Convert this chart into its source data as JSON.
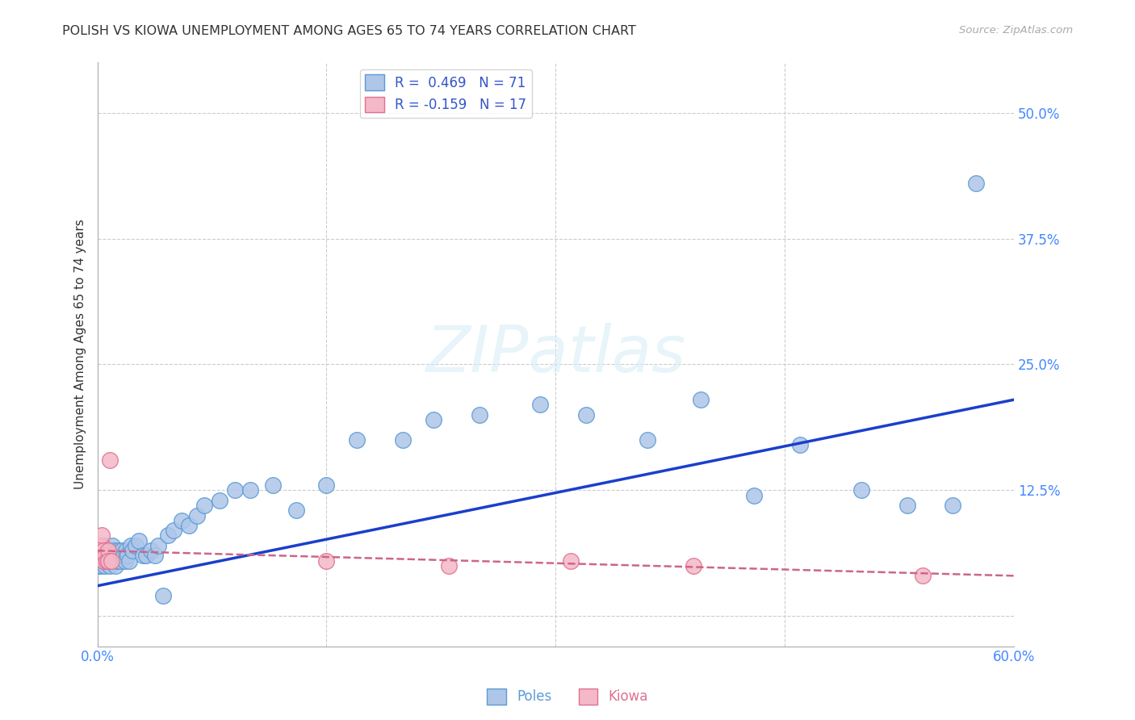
{
  "title": "POLISH VS KIOWA UNEMPLOYMENT AMONG AGES 65 TO 74 YEARS CORRELATION CHART",
  "source": "Source: ZipAtlas.com",
  "ylabel": "Unemployment Among Ages 65 to 74 years",
  "xlim": [
    0.0,
    0.6
  ],
  "ylim": [
    -0.03,
    0.55
  ],
  "xticks": [
    0.0,
    0.15,
    0.3,
    0.45,
    0.6
  ],
  "xticklabels": [
    "0.0%",
    "",
    "",
    "",
    "60.0%"
  ],
  "ytick_positions": [
    0.0,
    0.125,
    0.25,
    0.375,
    0.5
  ],
  "ytick_labels_right": [
    "",
    "12.5%",
    "25.0%",
    "37.5%",
    "50.0%"
  ],
  "grid_color": "#cccccc",
  "background_color": "#ffffff",
  "poles_color": "#aec6e8",
  "poles_edge_color": "#5b9bd5",
  "kiowa_color": "#f4b8c8",
  "kiowa_edge_color": "#e07090",
  "poles_line_color": "#1a3fcc",
  "kiowa_line_color": "#cc6688",
  "poles_R": 0.469,
  "poles_N": 71,
  "kiowa_R": -0.159,
  "kiowa_N": 17,
  "poles_x": [
    0.001,
    0.001,
    0.002,
    0.002,
    0.003,
    0.003,
    0.004,
    0.004,
    0.005,
    0.005,
    0.005,
    0.006,
    0.006,
    0.007,
    0.007,
    0.008,
    0.008,
    0.009,
    0.009,
    0.01,
    0.01,
    0.011,
    0.011,
    0.012,
    0.012,
    0.013,
    0.014,
    0.015,
    0.015,
    0.016,
    0.017,
    0.018,
    0.019,
    0.02,
    0.021,
    0.022,
    0.023,
    0.025,
    0.027,
    0.03,
    0.032,
    0.035,
    0.038,
    0.04,
    0.043,
    0.046,
    0.05,
    0.055,
    0.06,
    0.065,
    0.07,
    0.08,
    0.09,
    0.1,
    0.115,
    0.13,
    0.15,
    0.17,
    0.2,
    0.22,
    0.25,
    0.29,
    0.32,
    0.36,
    0.395,
    0.43,
    0.46,
    0.5,
    0.53,
    0.56,
    0.575
  ],
  "poles_y": [
    0.05,
    0.06,
    0.055,
    0.065,
    0.05,
    0.06,
    0.055,
    0.07,
    0.05,
    0.06,
    0.055,
    0.065,
    0.06,
    0.055,
    0.065,
    0.05,
    0.06,
    0.055,
    0.065,
    0.06,
    0.07,
    0.055,
    0.065,
    0.05,
    0.06,
    0.055,
    0.065,
    0.06,
    0.055,
    0.065,
    0.06,
    0.055,
    0.065,
    0.06,
    0.055,
    0.07,
    0.065,
    0.07,
    0.075,
    0.06,
    0.06,
    0.065,
    0.06,
    0.07,
    0.02,
    0.08,
    0.085,
    0.095,
    0.09,
    0.1,
    0.11,
    0.115,
    0.125,
    0.125,
    0.13,
    0.105,
    0.13,
    0.175,
    0.175,
    0.195,
    0.2,
    0.21,
    0.2,
    0.175,
    0.215,
    0.12,
    0.17,
    0.125,
    0.11,
    0.11,
    0.43
  ],
  "kiowa_x": [
    0.001,
    0.002,
    0.003,
    0.003,
    0.004,
    0.004,
    0.005,
    0.006,
    0.007,
    0.007,
    0.008,
    0.009,
    0.15,
    0.23,
    0.31,
    0.39,
    0.54
  ],
  "kiowa_y": [
    0.065,
    0.06,
    0.07,
    0.08,
    0.055,
    0.065,
    0.06,
    0.055,
    0.065,
    0.055,
    0.155,
    0.055,
    0.055,
    0.05,
    0.055,
    0.05,
    0.04
  ],
  "poles_trendline": [
    0.0,
    0.6,
    0.03,
    0.215
  ],
  "kiowa_trendline": [
    0.0,
    0.6,
    0.065,
    0.04
  ]
}
